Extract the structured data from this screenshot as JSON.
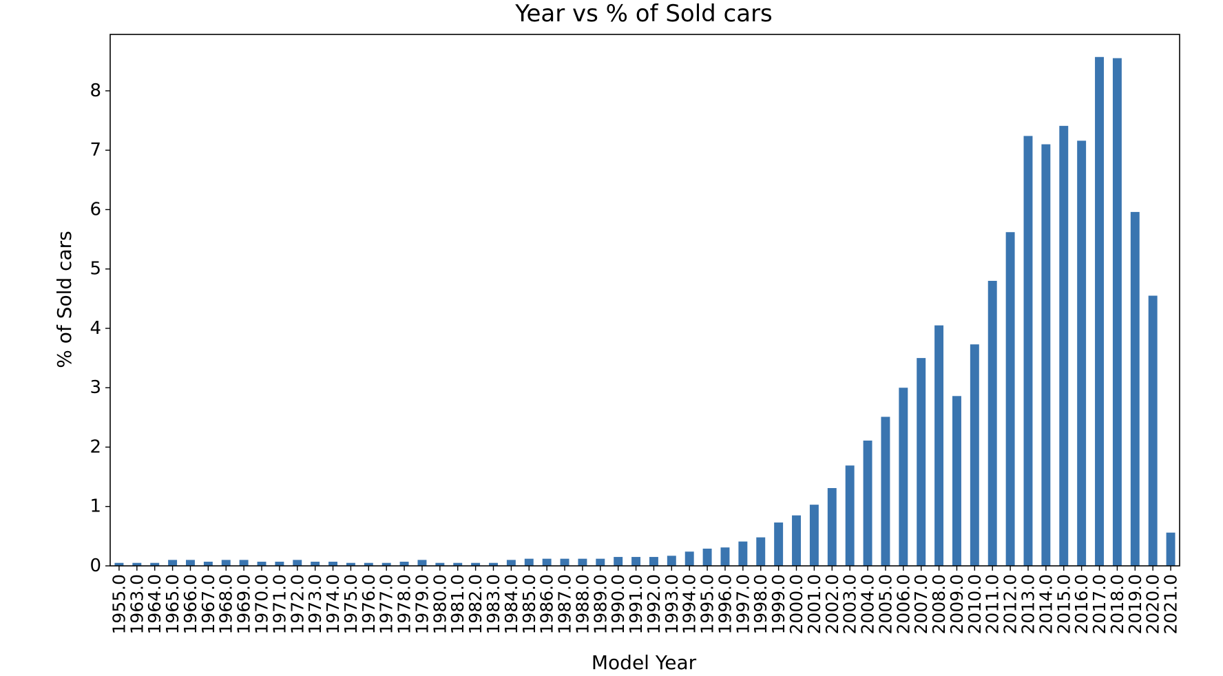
{
  "chart_data": {
    "type": "bar",
    "title": "Year vs % of Sold cars",
    "xlabel": "Model Year",
    "ylabel": "% of Sold cars",
    "ylim": [
      0,
      8.95
    ],
    "yticks": [
      0,
      1,
      2,
      3,
      4,
      5,
      6,
      7,
      8
    ],
    "grid": false,
    "legend": "none",
    "bar_color": "#3a75b0",
    "categories": [
      "1955.0",
      "1963.0",
      "1964.0",
      "1965.0",
      "1966.0",
      "1967.0",
      "1968.0",
      "1969.0",
      "1970.0",
      "1971.0",
      "1972.0",
      "1973.0",
      "1974.0",
      "1975.0",
      "1976.0",
      "1977.0",
      "1978.0",
      "1979.0",
      "1980.0",
      "1981.0",
      "1982.0",
      "1983.0",
      "1984.0",
      "1985.0",
      "1986.0",
      "1987.0",
      "1988.0",
      "1989.0",
      "1990.0",
      "1991.0",
      "1992.0",
      "1993.0",
      "1994.0",
      "1995.0",
      "1996.0",
      "1997.0",
      "1998.0",
      "1999.0",
      "2000.0",
      "2001.0",
      "2002.0",
      "2003.0",
      "2004.0",
      "2005.0",
      "2006.0",
      "2007.0",
      "2008.0",
      "2009.0",
      "2010.0",
      "2011.0",
      "2012.0",
      "2013.0",
      "2014.0",
      "2015.0",
      "2016.0",
      "2017.0",
      "2018.0",
      "2019.0",
      "2020.0",
      "2021.0"
    ],
    "values": [
      0.05,
      0.05,
      0.05,
      0.1,
      0.1,
      0.07,
      0.1,
      0.1,
      0.07,
      0.07,
      0.1,
      0.07,
      0.07,
      0.05,
      0.05,
      0.05,
      0.07,
      0.1,
      0.05,
      0.05,
      0.05,
      0.05,
      0.1,
      0.12,
      0.12,
      0.12,
      0.12,
      0.12,
      0.15,
      0.15,
      0.15,
      0.17,
      0.24,
      0.29,
      0.31,
      0.41,
      0.48,
      0.73,
      0.85,
      1.03,
      1.31,
      1.69,
      2.11,
      2.51,
      3.0,
      3.5,
      4.05,
      2.86,
      3.73,
      4.8,
      5.62,
      7.24,
      7.1,
      7.41,
      7.16,
      8.57,
      8.55,
      5.96,
      4.55,
      0.56
    ]
  }
}
